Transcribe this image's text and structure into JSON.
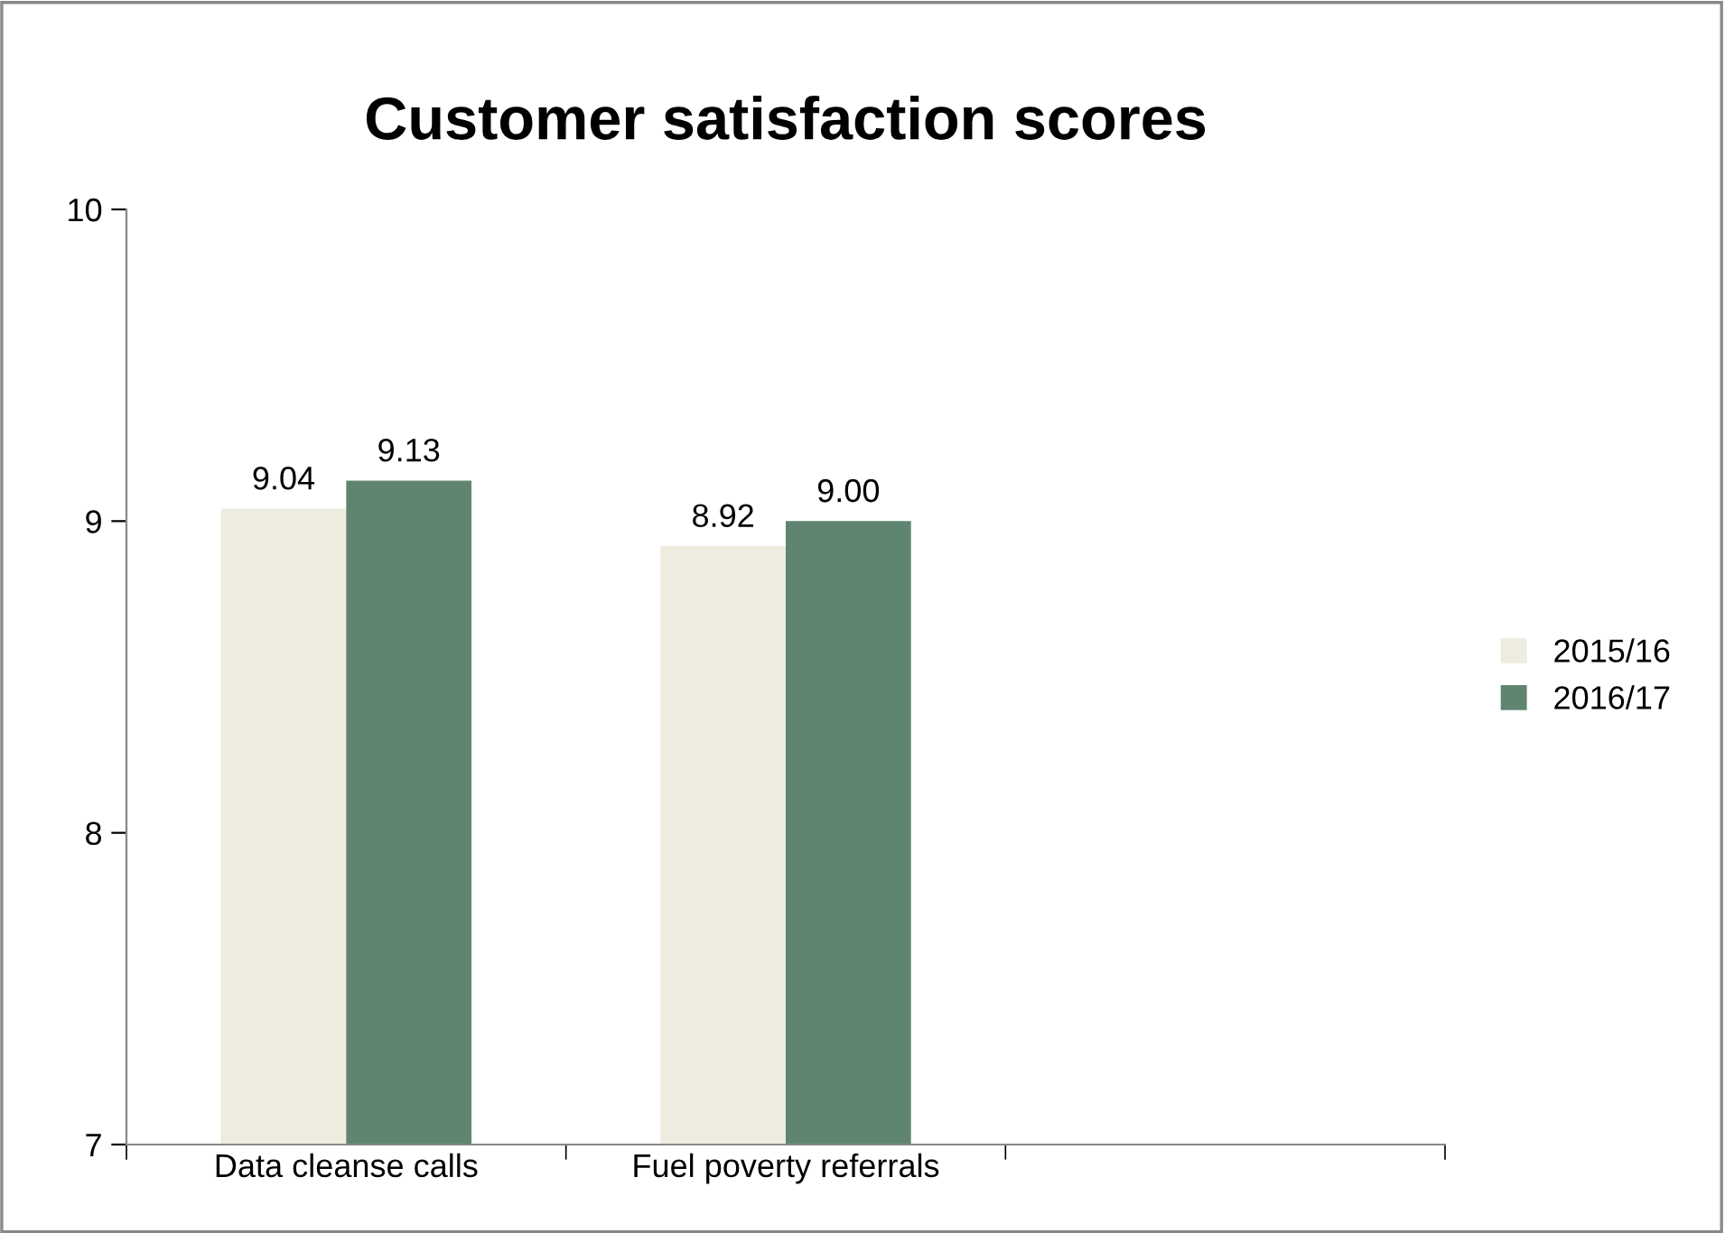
{
  "chart_data": {
    "type": "bar",
    "title": "Customer satisfaction scores",
    "categories": [
      "Data cleanse calls",
      "Fuel poverty referrals",
      null
    ],
    "series": [
      {
        "name": "2015/16",
        "color": "#eeebdf",
        "values": [
          9.04,
          8.92,
          null
        ],
        "value_labels": [
          "9.04",
          "8.92",
          null
        ]
      },
      {
        "name": "2016/17",
        "color": "#5f8571",
        "values": [
          9.13,
          9.0,
          null
        ],
        "value_labels": [
          "9.13",
          "9.00",
          null
        ]
      }
    ],
    "ylim": [
      7,
      10
    ],
    "yticks": [
      7,
      8,
      9,
      10
    ],
    "grid": false,
    "legend": "right"
  }
}
